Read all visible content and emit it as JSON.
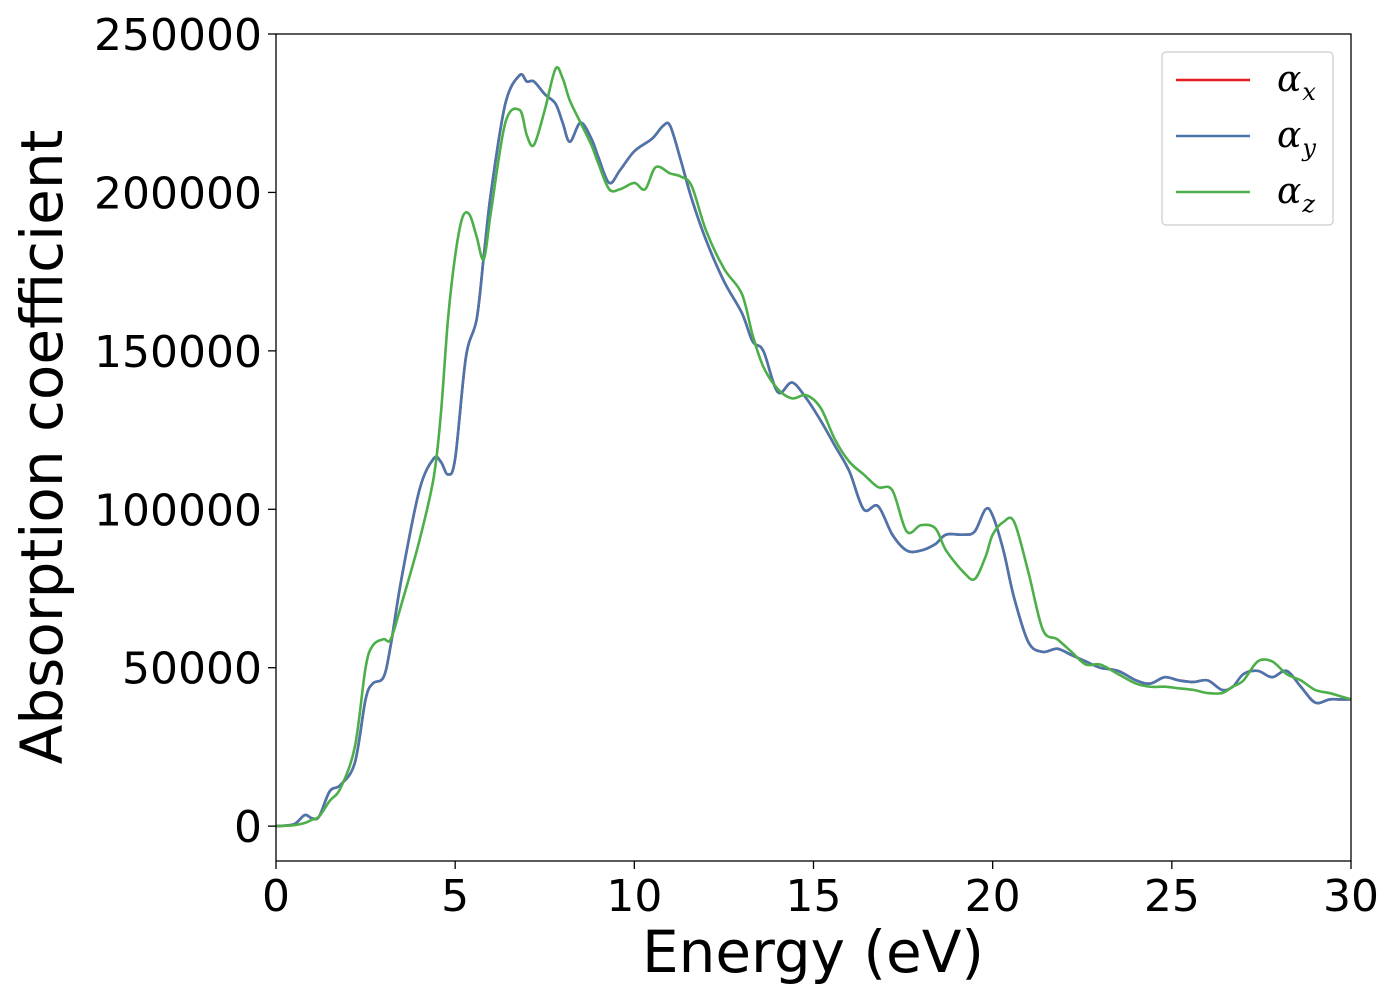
{
  "chart_data": {
    "type": "line",
    "xlabel": "Energy (eV)",
    "ylabel": "Absorption coefficient",
    "xlim": [
      0,
      30
    ],
    "ylim": [
      -11000,
      250000
    ],
    "xticks": [
      0,
      5,
      10,
      15,
      20,
      25,
      30
    ],
    "yticks": [
      0,
      50000,
      100000,
      150000,
      200000,
      250000
    ],
    "xtick_labels": [
      "0",
      "5",
      "10",
      "15",
      "20",
      "25",
      "30"
    ],
    "ytick_labels": [
      "0",
      "50000",
      "100000",
      "150000",
      "200000",
      "250000"
    ],
    "grid": false,
    "legend_position": "top-right",
    "series": [
      {
        "name": "α_x",
        "symbol": "α",
        "subscript": "x",
        "color": "#e41a1c",
        "x": [
          0,
          0.5,
          0.8,
          1.0,
          1.2,
          1.5,
          1.8,
          2.2,
          2.5,
          2.7,
          3.0,
          3.2,
          3.5,
          4.0,
          4.4,
          4.6,
          4.8,
          5.0,
          5.3,
          5.6,
          5.8,
          6.0,
          6.4,
          6.8,
          7.0,
          7.2,
          7.5,
          7.8,
          8.0,
          8.2,
          8.5,
          8.8,
          9.0,
          9.3,
          9.6,
          10.0,
          10.5,
          10.8,
          11.0,
          11.3,
          11.6,
          12.0,
          12.5,
          13.0,
          13.3,
          13.6,
          14.0,
          14.4,
          14.8,
          15.2,
          15.6,
          16.0,
          16.4,
          16.8,
          17.2,
          17.6,
          18.0,
          18.4,
          18.7,
          19.2,
          19.5,
          19.8,
          20.0,
          20.3,
          20.6,
          21.0,
          21.4,
          21.8,
          22.2,
          22.6,
          23.0,
          23.5,
          24.0,
          24.4,
          24.8,
          25.2,
          25.6,
          26.0,
          26.4,
          26.7,
          27.0,
          27.4,
          27.8,
          28.2,
          28.6,
          29.0,
          29.4,
          29.7,
          30.0
        ],
        "y": [
          0,
          600,
          3500,
          2500,
          3000,
          11000,
          13000,
          20000,
          40000,
          45000,
          47000,
          57000,
          78000,
          106000,
          116000,
          115000,
          111000,
          116000,
          148000,
          160000,
          180000,
          200000,
          228000,
          237000,
          235000,
          235000,
          231000,
          228000,
          222000,
          216000,
          222000,
          217000,
          211000,
          203000,
          207000,
          213000,
          217000,
          221000,
          221000,
          210000,
          198000,
          185000,
          172000,
          162000,
          153000,
          150000,
          137000,
          140000,
          135000,
          128000,
          120000,
          112000,
          100000,
          101000,
          92000,
          87000,
          87000,
          89000,
          92000,
          92000,
          93000,
          100000,
          98000,
          87000,
          72000,
          58000,
          55000,
          56000,
          54000,
          52000,
          50000,
          49000,
          46000,
          45000,
          47000,
          46000,
          45500,
          46000,
          43000,
          44000,
          48000,
          49000,
          47000,
          49000,
          44000,
          39000,
          40000,
          40000,
          40000
        ]
      },
      {
        "name": "α_y",
        "symbol": "α",
        "subscript": "y",
        "color": "#4a76ae",
        "x": [
          0,
          0.5,
          0.8,
          1.0,
          1.2,
          1.5,
          1.8,
          2.2,
          2.5,
          2.7,
          3.0,
          3.2,
          3.5,
          4.0,
          4.4,
          4.6,
          4.8,
          5.0,
          5.3,
          5.6,
          5.8,
          6.0,
          6.4,
          6.8,
          7.0,
          7.2,
          7.5,
          7.8,
          8.0,
          8.2,
          8.5,
          8.8,
          9.0,
          9.3,
          9.6,
          10.0,
          10.5,
          10.8,
          11.0,
          11.3,
          11.6,
          12.0,
          12.5,
          13.0,
          13.3,
          13.6,
          14.0,
          14.4,
          14.8,
          15.2,
          15.6,
          16.0,
          16.4,
          16.8,
          17.2,
          17.6,
          18.0,
          18.4,
          18.7,
          19.2,
          19.5,
          19.8,
          20.0,
          20.3,
          20.6,
          21.0,
          21.4,
          21.8,
          22.2,
          22.6,
          23.0,
          23.5,
          24.0,
          24.4,
          24.8,
          25.2,
          25.6,
          26.0,
          26.4,
          26.7,
          27.0,
          27.4,
          27.8,
          28.2,
          28.6,
          29.0,
          29.4,
          29.7,
          30.0
        ],
        "y": [
          0,
          600,
          3500,
          2500,
          3000,
          11000,
          13000,
          20000,
          40000,
          45000,
          47000,
          57000,
          78000,
          106000,
          116000,
          115000,
          111000,
          116000,
          148000,
          160000,
          180000,
          200000,
          228000,
          237000,
          235000,
          235000,
          231000,
          228000,
          222000,
          216000,
          222000,
          217000,
          211000,
          203000,
          207000,
          213000,
          217000,
          221000,
          221000,
          210000,
          198000,
          185000,
          172000,
          162000,
          153000,
          150000,
          137000,
          140000,
          135000,
          128000,
          120000,
          112000,
          100000,
          101000,
          92000,
          87000,
          87000,
          89000,
          92000,
          92000,
          93000,
          100000,
          98000,
          87000,
          72000,
          58000,
          55000,
          56000,
          54000,
          52000,
          50000,
          49000,
          46000,
          45000,
          47000,
          46000,
          45500,
          46000,
          43000,
          44000,
          48000,
          49000,
          47000,
          49000,
          44000,
          39000,
          40000,
          40000,
          40000
        ]
      },
      {
        "name": "α_z",
        "symbol": "α",
        "subscript": "z",
        "color": "#4daf4a",
        "x": [
          0,
          0.5,
          0.8,
          1.0,
          1.2,
          1.5,
          1.8,
          2.2,
          2.5,
          2.7,
          3.0,
          3.2,
          3.5,
          4.0,
          4.4,
          4.6,
          4.8,
          5.0,
          5.2,
          5.4,
          5.6,
          5.8,
          6.0,
          6.4,
          6.8,
          7.0,
          7.2,
          7.5,
          7.8,
          8.0,
          8.2,
          8.5,
          8.8,
          9.0,
          9.3,
          9.6,
          10.0,
          10.3,
          10.6,
          11.0,
          11.3,
          11.6,
          12.0,
          12.5,
          13.0,
          13.3,
          13.6,
          14.0,
          14.4,
          14.8,
          15.2,
          15.6,
          16.0,
          16.4,
          16.8,
          17.2,
          17.6,
          18.0,
          18.4,
          18.7,
          19.2,
          19.5,
          19.8,
          20.0,
          20.3,
          20.6,
          21.0,
          21.4,
          21.8,
          22.2,
          22.6,
          23.0,
          23.5,
          24.0,
          24.4,
          24.8,
          25.2,
          25.6,
          26.0,
          26.4,
          26.7,
          27.0,
          27.4,
          27.8,
          28.2,
          28.6,
          29.0,
          29.4,
          29.7,
          30.0
        ],
        "y": [
          0,
          300,
          1000,
          2000,
          3000,
          8000,
          12000,
          25000,
          50000,
          57000,
          59000,
          59000,
          70000,
          90000,
          110000,
          130000,
          160000,
          180000,
          192000,
          193000,
          186000,
          179000,
          194000,
          222000,
          226000,
          218000,
          215000,
          226000,
          239000,
          236000,
          229000,
          222000,
          215000,
          209000,
          201000,
          201000,
          203000,
          201000,
          208000,
          206000,
          205000,
          202000,
          188000,
          176000,
          168000,
          155000,
          145000,
          138000,
          135000,
          136000,
          132000,
          122000,
          115000,
          111000,
          107000,
          106000,
          93000,
          95000,
          94000,
          87000,
          80000,
          78000,
          85000,
          92000,
          96000,
          96000,
          80000,
          62000,
          59000,
          55000,
          51000,
          51000,
          48000,
          45000,
          44000,
          44000,
          43500,
          43000,
          42000,
          42000,
          44000,
          46000,
          52000,
          52000,
          48000,
          46000,
          43000,
          42000,
          41000,
          40000
        ]
      }
    ]
  }
}
